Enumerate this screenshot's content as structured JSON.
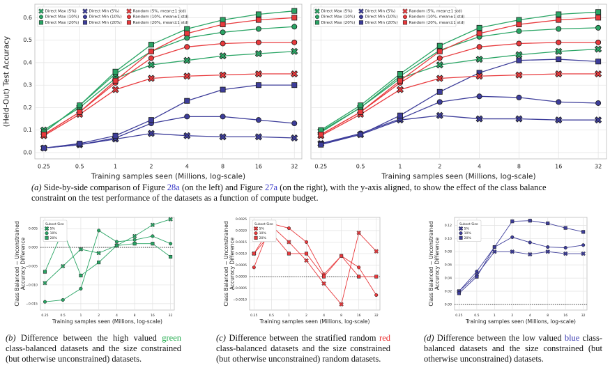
{
  "chart_data": [
    {
      "type": "line",
      "ylabel": "(Held-Out) Test Accuracy",
      "xlabel": "Training samples seen (Millions, log-scale)",
      "x": [
        0.25,
        0.5,
        1,
        2,
        4,
        8,
        16,
        32
      ],
      "xscale": "log",
      "xlim": [
        0.21,
        37
      ],
      "xticks": [
        0.25,
        0.5,
        1,
        2,
        4,
        8,
        16,
        32
      ],
      "ylim": [
        -0.028,
        0.66
      ],
      "yticks": [
        {
          "value": 0,
          "label": "0.0"
        },
        0.1,
        0.2,
        0.3,
        0.4,
        0.5,
        0.6
      ],
      "grid": true,
      "legend": "upper left",
      "series": [
        {
          "name": "Direct Max (5%)",
          "color": "#2aa565",
          "marker": "x",
          "values": [
            0.1,
            0.2,
            0.33,
            0.39,
            0.41,
            0.43,
            0.44,
            0.45
          ]
        },
        {
          "name": "Direct Max (10%)",
          "color": "#2aa565",
          "marker": "o",
          "values": [
            0.09,
            0.21,
            0.35,
            0.45,
            0.51,
            0.535,
            0.55,
            0.56
          ]
        },
        {
          "name": "Direct Max (20%)",
          "color": "#2aa565",
          "marker": "s",
          "values": [
            0.09,
            0.21,
            0.36,
            0.48,
            0.55,
            0.59,
            0.615,
            0.63
          ]
        },
        {
          "name": "Direct Min (5%)",
          "color": "#3d3d9a",
          "marker": "x",
          "values": [
            0.02,
            0.035,
            0.06,
            0.085,
            0.075,
            0.07,
            0.07,
            0.065
          ]
        },
        {
          "name": "Direct Min (10%)",
          "color": "#3d3d9a",
          "marker": "o",
          "values": [
            0.02,
            0.035,
            0.065,
            0.13,
            0.16,
            0.16,
            0.145,
            0.13
          ]
        },
        {
          "name": "Direct Min (20%)",
          "color": "#3d3d9a",
          "marker": "s",
          "values": [
            0.02,
            0.04,
            0.075,
            0.145,
            0.23,
            0.28,
            0.3,
            0.3
          ]
        },
        {
          "name": "Random (5%, mean±1 std)",
          "color": "#e8393c",
          "marker": "x",
          "values": [
            0.075,
            0.17,
            0.28,
            0.33,
            0.34,
            0.345,
            0.35,
            0.35
          ]
        },
        {
          "name": "Random (10%, mean±1 std)",
          "color": "#e8393c",
          "marker": "o",
          "values": [
            0.08,
            0.18,
            0.31,
            0.42,
            0.47,
            0.485,
            0.49,
            0.49
          ]
        },
        {
          "name": "Random (20%, mean±1 std)",
          "color": "#e8393c",
          "marker": "s",
          "values": [
            0.08,
            0.18,
            0.32,
            0.45,
            0.53,
            0.57,
            0.59,
            0.6
          ]
        }
      ]
    },
    {
      "type": "line",
      "xlabel": "Training samples seen (Millions, log-scale)",
      "x": [
        0.25,
        0.5,
        1,
        2,
        4,
        8,
        16,
        32
      ],
      "xscale": "log",
      "xlim": [
        0.21,
        37
      ],
      "xticks": [
        0.25,
        0.5,
        1,
        2,
        4,
        8,
        16,
        32
      ],
      "ylim": [
        -0.028,
        0.66
      ],
      "yticks": [
        0,
        0.1,
        0.2,
        0.3,
        0.4,
        0.5,
        0.6
      ],
      "grid": true,
      "legend": "upper left",
      "series": [
        {
          "name": "Direct Max (5%)",
          "color": "#2aa565",
          "marker": "x",
          "values": [
            0.095,
            0.2,
            0.33,
            0.39,
            0.415,
            0.435,
            0.45,
            0.46
          ]
        },
        {
          "name": "Direct Max (10%)",
          "color": "#2aa565",
          "marker": "o",
          "values": [
            0.09,
            0.2,
            0.34,
            0.455,
            0.515,
            0.54,
            0.55,
            0.555
          ]
        },
        {
          "name": "Direct Max (20%)",
          "color": "#2aa565",
          "marker": "s",
          "values": [
            0.1,
            0.21,
            0.35,
            0.475,
            0.555,
            0.59,
            0.615,
            0.625
          ]
        },
        {
          "name": "Direct Min (5%)",
          "color": "#3d3d9a",
          "marker": "x",
          "values": [
            0.04,
            0.08,
            0.145,
            0.165,
            0.15,
            0.15,
            0.145,
            0.145
          ]
        },
        {
          "name": "Direct Min (10%)",
          "color": "#3d3d9a",
          "marker": "o",
          "values": [
            0.04,
            0.085,
            0.15,
            0.225,
            0.25,
            0.245,
            0.225,
            0.22
          ]
        },
        {
          "name": "Direct Min (20%)",
          "color": "#3d3d9a",
          "marker": "s",
          "values": [
            0.035,
            0.08,
            0.165,
            0.27,
            0.355,
            0.41,
            0.415,
            0.405
          ]
        },
        {
          "name": "Random (5%, mean±1 std)",
          "color": "#e8393c",
          "marker": "x",
          "values": [
            0.075,
            0.17,
            0.28,
            0.33,
            0.34,
            0.345,
            0.35,
            0.35
          ]
        },
        {
          "name": "Random (10%, mean±1 std)",
          "color": "#e8393c",
          "marker": "o",
          "values": [
            0.08,
            0.18,
            0.31,
            0.42,
            0.47,
            0.485,
            0.49,
            0.49
          ]
        },
        {
          "name": "Random (20%, mean±1 std)",
          "color": "#e8393c",
          "marker": "s",
          "values": [
            0.08,
            0.18,
            0.32,
            0.45,
            0.53,
            0.57,
            0.59,
            0.6
          ]
        }
      ]
    },
    {
      "type": "line",
      "ylabel": [
        "Class Balanced − Unconstrained",
        "Accuracy Difference"
      ],
      "xlabel": "Training samples seen (Millions, log-scale)",
      "x": [
        0.25,
        0.5,
        1,
        2,
        4,
        8,
        16,
        32
      ],
      "xscale": "log",
      "xlim": [
        0.21,
        37
      ],
      "xticks": [
        0.25,
        0.5,
        1,
        2,
        4,
        8,
        16,
        32
      ],
      "ylim": [
        -0.0167,
        0.008
      ],
      "yticks": [
        {
          "value": -0.015,
          "label": "−0.015"
        },
        {
          "value": -0.01,
          "label": "−0.010"
        },
        {
          "value": -0.005,
          "label": "−0.005"
        },
        {
          "value": 0,
          "label": "0.000"
        },
        0.005
      ],
      "grid": true,
      "legend": "upper left",
      "legend_title": "Subset Size",
      "series": [
        {
          "name": "5%",
          "color": "#2aa565",
          "marker": "x",
          "values": [
            -0.0095,
            -0.005,
            -0.0005,
            -0.0015,
            0.0005,
            0.003,
            0.006,
            0.0075
          ]
        },
        {
          "name": "10%",
          "color": "#2aa565",
          "marker": "o",
          "values": [
            -0.0145,
            -0.014,
            -0.011,
            0.0045,
            0.0015,
            0.002,
            0.003,
            0.001
          ]
        },
        {
          "name": "20%",
          "color": "#2aa565",
          "marker": "s",
          "values": [
            -0.0065,
            0.0045,
            -0.0075,
            -0.004,
            0.0005,
            0.001,
            0.001,
            -0.0025
          ]
        }
      ]
    },
    {
      "type": "line",
      "ylabel": [
        "Class Balanced − Unconstrained",
        "Accuracy Difference"
      ],
      "xlabel": "Training samples seen (Millions, log-scale)",
      "x": [
        0.25,
        0.5,
        1,
        2,
        4,
        8,
        16,
        32
      ],
      "xscale": "log",
      "xlim": [
        0.21,
        37
      ],
      "xticks": [
        0.25,
        0.5,
        1,
        2,
        4,
        8,
        16,
        32
      ],
      "ylim": [
        -0.00145,
        0.00257
      ],
      "yticks": [
        {
          "value": -0.001,
          "label": "−0.0010"
        },
        {
          "value": -0.0005,
          "label": "−0.0005"
        },
        {
          "value": 0,
          "label": "0.0000"
        },
        0.0005,
        {
          "value": 0.001,
          "label": "0.0010"
        },
        0.0015,
        {
          "value": 0.002,
          "label": "0.0020"
        },
        0.0025
      ],
      "grid": true,
      "legend": "upper left",
      "legend_title": "Subset Size",
      "series": [
        {
          "name": "5%",
          "color": "#e8393c",
          "marker": "x",
          "values": [
            0.001,
            0.0022,
            0.0015,
            0.0007,
            -0.0003,
            -0.0012,
            0.0019,
            0.0011
          ]
        },
        {
          "name": "10%",
          "color": "#e8393c",
          "marker": "o",
          "values": [
            0.0004,
            0.0023,
            0.0021,
            0.0015,
            0.0001,
            0.0009,
            0.0004,
            -0.0008
          ]
        },
        {
          "name": "20%",
          "color": "#e8393c",
          "marker": "s",
          "values": [
            0.001,
            0.0019,
            0.001,
            0.001,
            0,
            0.0009,
            0,
            0
          ]
        }
      ]
    },
    {
      "type": "line",
      "ylabel": [
        "Class Balanced − Unconstrained",
        "Accuracy Difference"
      ],
      "xlabel": "Training samples seen (Millions, log-scale)",
      "x": [
        0.25,
        0.5,
        1,
        2,
        4,
        8,
        16,
        32
      ],
      "xscale": "log",
      "xlim": [
        0.21,
        37
      ],
      "xticks": [
        0.25,
        0.5,
        1,
        2,
        4,
        8,
        16,
        32
      ],
      "ylim": [
        -0.0085,
        0.132
      ],
      "yticks": [
        {
          "value": 0,
          "label": "0.00"
        },
        0.02,
        0.04,
        0.06,
        0.08,
        {
          "value": 0.1,
          "label": "0.10"
        },
        0.12
      ],
      "grid": true,
      "legend": "upper left",
      "legend_title": "Subset Size",
      "series": [
        {
          "name": "5%",
          "color": "#3d3d9a",
          "marker": "x",
          "values": [
            0.02,
            0.045,
            0.08,
            0.08,
            0.076,
            0.08,
            0.077,
            0.077
          ]
        },
        {
          "name": "10%",
          "color": "#3d3d9a",
          "marker": "o",
          "values": [
            0.02,
            0.05,
            0.087,
            0.102,
            0.094,
            0.087,
            0.086,
            0.09
          ]
        },
        {
          "name": "20%",
          "color": "#3d3d9a",
          "marker": "s",
          "values": [
            0.017,
            0.042,
            0.087,
            0.126,
            0.127,
            0.123,
            0.116,
            0.11
          ]
        }
      ]
    }
  ],
  "captions": [
    {
      "label": "(a)",
      "parts": [
        "Side-by-side comparison of Figure ",
        {
          "text": "28a",
          "color": "#3a3ac8"
        },
        " (on the left) and Figure ",
        {
          "text": "27a",
          "color": "#3a3ac8"
        },
        " (on the right), with the y-axis aligned, to show the effect of the class balance constraint on the test performance of the datasets as a function of compute budget."
      ]
    },
    {
      "label": "(b)",
      "parts": [
        "Difference between the high valued ",
        {
          "text": "green",
          "color": "#1faa4a"
        },
        " class-balanced datasets and the size constrained (but otherwise unconstrained) datasets."
      ]
    },
    {
      "label": "(c)",
      "parts": [
        "Difference between the stratified random ",
        {
          "text": "red",
          "color": "#e82a2a"
        },
        " class-balanced datasets and the size constrained (but otherwise unconstrained) random datasets."
      ]
    },
    {
      "label": "(d)",
      "parts": [
        "Difference between the low valued ",
        {
          "text": "blue",
          "color": "#3a3ab0"
        },
        " class-balanced datasets and the size constrained (but otherwise unconstrained) datasets."
      ]
    }
  ]
}
